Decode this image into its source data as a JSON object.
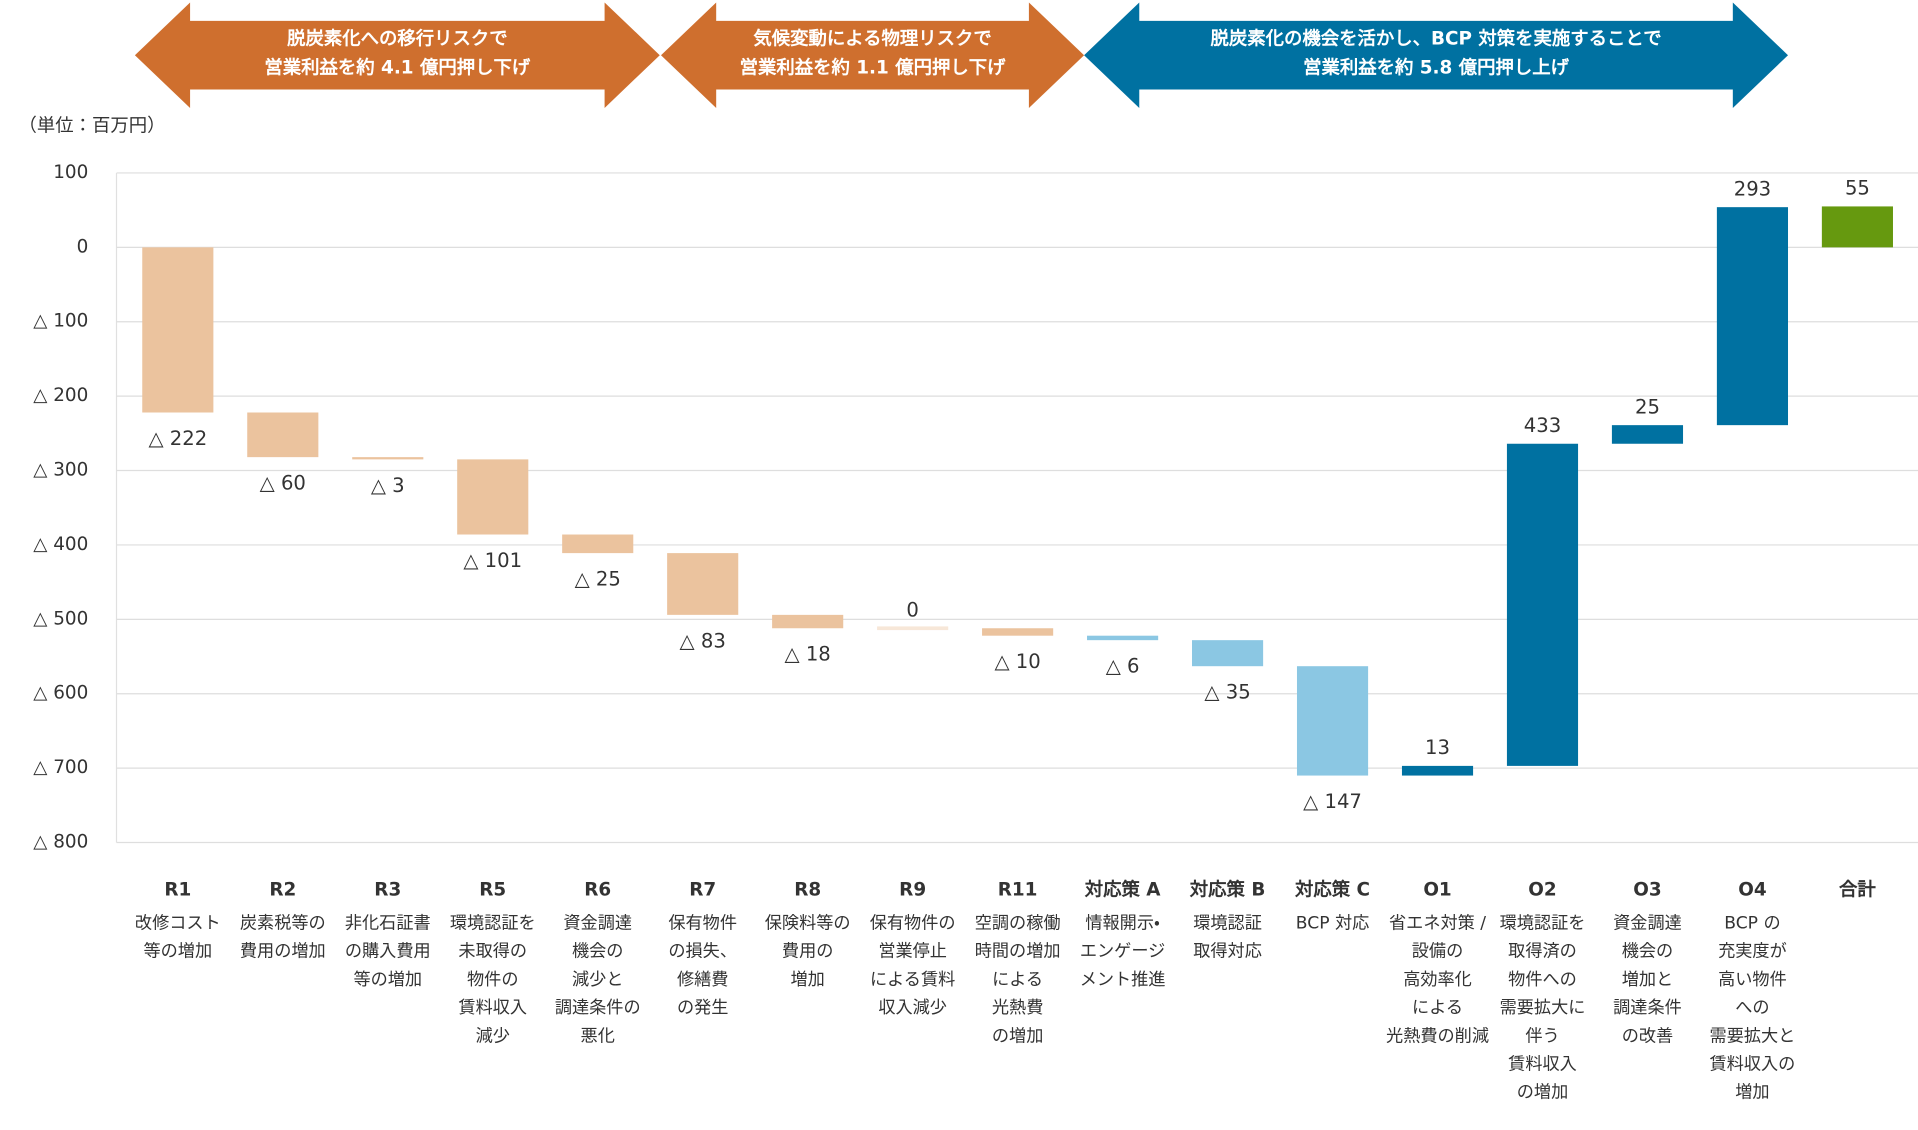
{
  "chart_data": {
    "type": "waterfall",
    "y_label": "（単位：百万円）",
    "banners": [
      {
        "lines": [
          "脱炭素化への移行リスクで",
          "営業利益を約 4.1 億円押し下げ"
        ],
        "color": "#cf6f2e"
      },
      {
        "lines": [
          "気候変動による物理リスクで",
          "営業利益を約 1.1 億円押し下げ"
        ],
        "color": "#cf6f2e"
      },
      {
        "lines": [
          "脱炭素化の機会を活かし、BCP 対策を実施することで",
          "営業利益を約 5.8 億円押し上げ"
        ],
        "color": "#0071a1"
      }
    ],
    "categories": [
      "R1",
      "R2",
      "R3",
      "R5",
      "R6",
      "R7",
      "R8",
      "R9",
      "R11",
      "対応策 A",
      "対応策 B",
      "対応策 C",
      "O1",
      "O2",
      "O3",
      "O4",
      "合計"
    ],
    "descriptions": [
      [
        "改修コスト",
        "等の増加"
      ],
      [
        "炭素税等の",
        "費用の増加"
      ],
      [
        "非化石証書",
        "の購入費用",
        "等の増加"
      ],
      [
        "環境認証を",
        "未取得の",
        "物件の",
        "賃料収入",
        "減少"
      ],
      [
        "資金調達",
        "機会の",
        "減少と",
        "調達条件の",
        "悪化"
      ],
      [
        "保有物件",
        "の損失、",
        "修繕費",
        "の発生"
      ],
      [
        "保険料等の",
        "費用の",
        "増加"
      ],
      [
        "保有物件の",
        "営業停止",
        "による賃料",
        "収入減少"
      ],
      [
        "空調の稼働",
        "時間の増加",
        "による",
        "光熱費",
        "の増加"
      ],
      [
        "情報開示・",
        "エンゲージ",
        "メント推進"
      ],
      [
        "環境認証",
        "取得対応"
      ],
      [
        "BCP 対応"
      ],
      [
        "省エネ対策 /",
        "設備の",
        "高効率化",
        "による",
        "光熱費の削減"
      ],
      [
        "環境認証を",
        "取得済の",
        "物件への",
        "需要拡大に",
        "伴う",
        "賃料収入",
        "の増加"
      ],
      [
        "資金調達",
        "機会の",
        "増加と",
        "調達条件",
        "の改善"
      ],
      [
        "BCP の",
        "充実度が",
        "高い物件",
        "への",
        "需要拡大と",
        "賃料収入の",
        "増加"
      ],
      []
    ],
    "values": [
      -222,
      -60,
      -3,
      -101,
      -25,
      -83,
      -18,
      0,
      -10,
      -6,
      -35,
      -147,
      13,
      433,
      25,
      293,
      55
    ],
    "value_labels": [
      "△ 222",
      "△ 60",
      "△ 3",
      "△ 101",
      "△ 25",
      "△ 83",
      "△ 18",
      "0",
      "△ 10",
      "△ 6",
      "△ 35",
      "△ 147",
      "13",
      "433",
      "25",
      "293",
      "55"
    ],
    "measure": [
      "relative",
      "relative",
      "relative",
      "relative",
      "relative",
      "relative",
      "relative",
      "relative",
      "relative",
      "relative",
      "relative",
      "relative",
      "relative",
      "relative",
      "relative",
      "relative",
      "total"
    ],
    "colors": [
      "#ebc39e",
      "#ebc39e",
      "#ebc39e",
      "#ebc39e",
      "#ebc39e",
      "#ebc39e",
      "#ebc39e",
      "#ebc39e",
      "#ebc39e",
      "#8bc7e3",
      "#8bc7e3",
      "#8bc7e3",
      "#0071a1",
      "#0071a1",
      "#0071a1",
      "#0071a1",
      "#66990f"
    ],
    "ylim": [
      -800,
      100
    ],
    "yticks": [
      100,
      0,
      {
        "value": -100,
        "label": "△ 100"
      },
      {
        "value": -200,
        "label": "△ 200"
      },
      {
        "value": -300,
        "label": "△ 300"
      },
      {
        "value": -400,
        "label": "△ 400"
      },
      {
        "value": -500,
        "label": "△ 500"
      },
      {
        "value": -600,
        "label": "△ 600"
      },
      {
        "value": -700,
        "label": "△ 700"
      },
      {
        "value": -800,
        "label": "△ 800"
      }
    ],
    "grid": true
  }
}
